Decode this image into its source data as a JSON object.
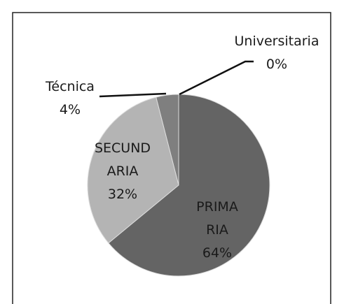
{
  "chart_data": {
    "type": "pie",
    "categories": [
      "PRIMARIA",
      "SECUNDARIA",
      "Técnica",
      "Universitaria"
    ],
    "values": [
      64,
      32,
      4,
      0
    ],
    "value_labels": [
      "64%",
      "32%",
      "4%",
      "0%"
    ],
    "colors": [
      "#646464",
      "#b4b4b4",
      "#7f7f7f",
      "#9a9a9a"
    ]
  }
}
